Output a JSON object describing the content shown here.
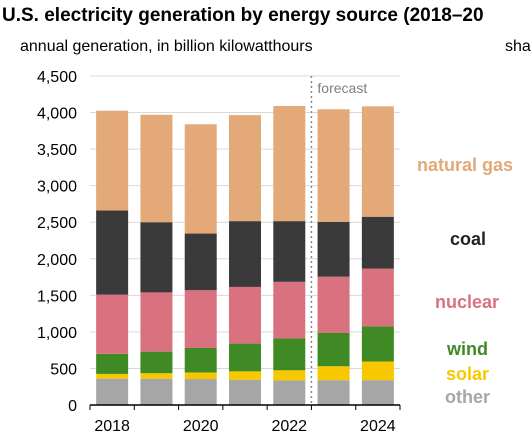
{
  "header": {
    "title": "U.S. electricity generation by energy source (2018–20",
    "subtitle": "annual generation, in billion kilowatthours",
    "subtitle_right": "sha"
  },
  "chart_data": {
    "type": "bar",
    "stacked": true,
    "categories": [
      "2018",
      "2019",
      "2020",
      "2021",
      "2022",
      "2023",
      "2024"
    ],
    "x_tick_labels": [
      "2018",
      "2020",
      "2022",
      "2024"
    ],
    "y_tick_labels": [
      "0",
      "500",
      "1,000",
      "1,500",
      "2,000",
      "2,500",
      "3,000",
      "3,500",
      "4,000",
      "4,500"
    ],
    "ylim": [
      0,
      4500
    ],
    "forecast_label": "forecast",
    "forecast_start_index": 5,
    "series": [
      {
        "name": "other",
        "color": "#a6a6a6",
        "values": [
          360,
          360,
          355,
          345,
          335,
          340,
          340
        ]
      },
      {
        "name": "solar",
        "color": "#f7c800",
        "values": [
          65,
          75,
          90,
          115,
          140,
          190,
          255
        ]
      },
      {
        "name": "wind",
        "color": "#3f8a24",
        "values": [
          275,
          295,
          335,
          380,
          435,
          455,
          480
        ]
      },
      {
        "name": "nuclear",
        "color": "#d9727e",
        "values": [
          810,
          810,
          790,
          775,
          775,
          770,
          790
        ]
      },
      {
        "name": "coal",
        "color": "#3a3a3a",
        "values": [
          1150,
          960,
          775,
          900,
          830,
          750,
          710
        ]
      },
      {
        "name": "natural gas",
        "color": "#e3a978",
        "values": [
          1365,
          1470,
          1495,
          1450,
          1575,
          1540,
          1510
        ]
      }
    ]
  }
}
